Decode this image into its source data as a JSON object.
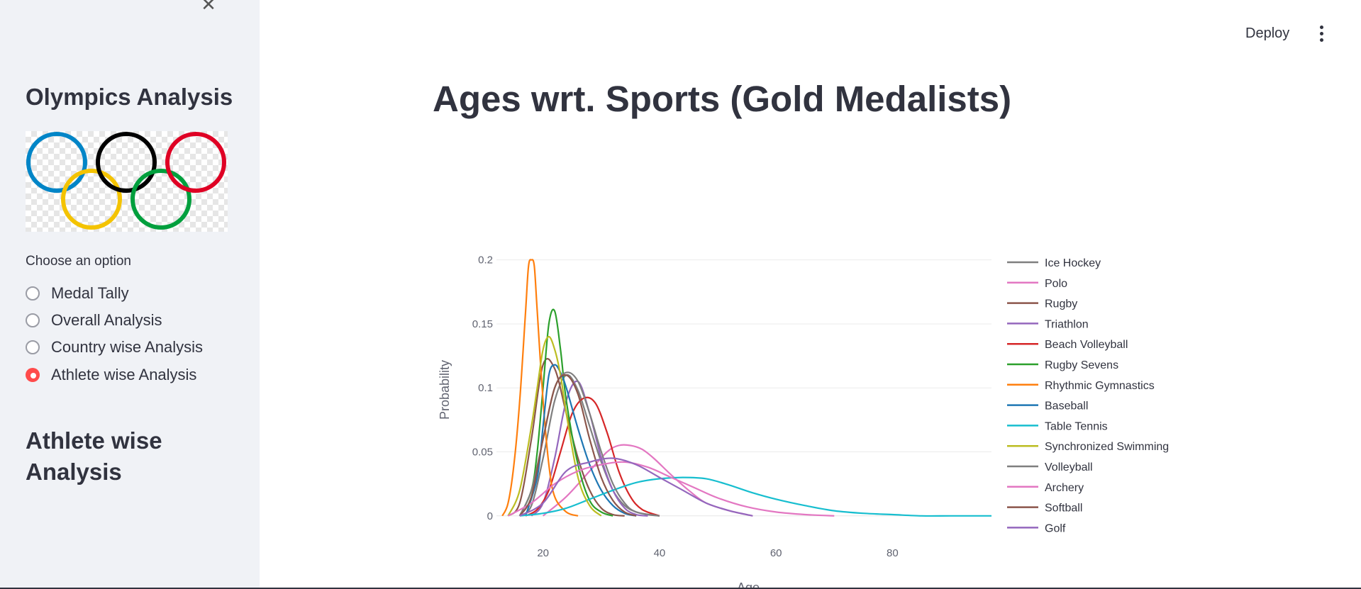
{
  "sidebar": {
    "close_icon": "close-icon",
    "app_title": "Olympics Analysis",
    "logo": {
      "name": "olympic-rings-logo",
      "ring_colors": [
        "#0085c7",
        "#000000",
        "#df0024",
        "#f4c300",
        "#009f3d"
      ]
    },
    "radio": {
      "label": "Choose an option",
      "options": [
        {
          "label": "Medal Tally",
          "selected": false
        },
        {
          "label": "Overall Analysis",
          "selected": false
        },
        {
          "label": "Country wise Analysis",
          "selected": false
        },
        {
          "label": "Athlete wise Analysis",
          "selected": true
        }
      ],
      "accent_color": "#ff4b4b"
    },
    "section_heading": "Athlete wise Analysis"
  },
  "header": {
    "deploy_label": "Deploy",
    "menu_icon": "vertical-ellipsis-icon"
  },
  "main": {
    "title": "Ages wrt. Sports (Gold Medalists)"
  },
  "chart_data": {
    "type": "line",
    "title": "",
    "xlabel": "Age",
    "ylabel": "Probability",
    "xlim": [
      12,
      97
    ],
    "ylim": [
      -0.004,
      0.212
    ],
    "xticks": [
      "20",
      "40",
      "60",
      "80"
    ],
    "yticks": [
      "0",
      "0.05",
      "0.1",
      "0.15",
      "0.2"
    ],
    "grid": true,
    "legend_position": "right",
    "series": [
      {
        "name": "Ice Hockey",
        "color": "#7f7f7f",
        "x": [
          16,
          18,
          20,
          22,
          24,
          26,
          28,
          30,
          32,
          34,
          36,
          38,
          40
        ],
        "y": [
          0,
          0.008,
          0.045,
          0.09,
          0.11,
          0.098,
          0.07,
          0.042,
          0.02,
          0.008,
          0.003,
          0.001,
          0
        ]
      },
      {
        "name": "Polo",
        "color": "#e377c2",
        "x": [
          20,
          24,
          28,
          31,
          33,
          35,
          37,
          39,
          42,
          45,
          48,
          52,
          56
        ],
        "y": [
          0,
          0.015,
          0.035,
          0.05,
          0.055,
          0.055,
          0.052,
          0.045,
          0.032,
          0.02,
          0.01,
          0.004,
          0
        ]
      },
      {
        "name": "Rugby",
        "color": "#8c564b",
        "x": [
          14,
          16,
          18,
          20,
          22,
          24,
          26,
          28,
          30,
          32,
          34
        ],
        "y": [
          0,
          0.01,
          0.06,
          0.118,
          0.115,
          0.08,
          0.045,
          0.02,
          0.006,
          0.001,
          0
        ]
      },
      {
        "name": "Triathlon",
        "color": "#9467bd",
        "x": [
          18,
          20,
          22,
          24,
          26,
          28,
          30,
          32,
          34,
          36,
          38
        ],
        "y": [
          0,
          0.01,
          0.045,
          0.09,
          0.105,
          0.08,
          0.045,
          0.02,
          0.006,
          0.001,
          0
        ]
      },
      {
        "name": "Beach Volleyball",
        "color": "#d62728",
        "x": [
          17,
          19,
          21,
          23,
          25,
          27,
          29,
          31,
          33,
          35,
          37,
          40
        ],
        "y": [
          0,
          0.005,
          0.02,
          0.05,
          0.08,
          0.092,
          0.088,
          0.065,
          0.035,
          0.015,
          0.005,
          0
        ]
      },
      {
        "name": "Rugby Sevens",
        "color": "#2ca02c",
        "x": [
          16,
          18,
          19,
          20,
          21,
          22,
          23,
          24,
          26,
          28,
          30,
          32
        ],
        "y": [
          0,
          0.02,
          0.05,
          0.1,
          0.15,
          0.16,
          0.13,
          0.09,
          0.04,
          0.012,
          0.003,
          0
        ]
      },
      {
        "name": "Rhythmic Gymnastics",
        "color": "#ff7f0e",
        "x": [
          13,
          14,
          15,
          16,
          17,
          17.5,
          18,
          18.5,
          19,
          20,
          21,
          22,
          24,
          26
        ],
        "y": [
          0,
          0.01,
          0.04,
          0.09,
          0.16,
          0.195,
          0.2,
          0.195,
          0.16,
          0.09,
          0.04,
          0.015,
          0.003,
          0
        ]
      },
      {
        "name": "Baseball",
        "color": "#1f77b4",
        "x": [
          17,
          19,
          20,
          21,
          22,
          23,
          24,
          26,
          28,
          30,
          32,
          34,
          36
        ],
        "y": [
          0,
          0.03,
          0.07,
          0.11,
          0.118,
          0.112,
          0.1,
          0.068,
          0.04,
          0.02,
          0.008,
          0.002,
          0
        ]
      },
      {
        "name": "Table Tennis",
        "color": "#17becf",
        "x": [
          16,
          20,
          24,
          28,
          32,
          36,
          40,
          44,
          48,
          52,
          56,
          60,
          65,
          70,
          75,
          80,
          85,
          90,
          97
        ],
        "y": [
          0,
          0.002,
          0.006,
          0.013,
          0.02,
          0.026,
          0.029,
          0.03,
          0.029,
          0.024,
          0.018,
          0.013,
          0.008,
          0.004,
          0.002,
          0.001,
          0,
          0,
          0
        ]
      },
      {
        "name": "Synchronized Swimming",
        "color": "#bcbd22",
        "x": [
          14,
          16,
          18,
          19,
          20,
          21,
          22,
          23,
          24,
          26,
          28,
          30
        ],
        "y": [
          0,
          0.02,
          0.07,
          0.1,
          0.13,
          0.14,
          0.13,
          0.11,
          0.08,
          0.03,
          0.008,
          0
        ]
      },
      {
        "name": "Volleyball",
        "color": "#7f7f7f",
        "x": [
          16,
          18,
          20,
          22,
          24,
          26,
          28,
          30,
          32,
          34,
          36,
          40
        ],
        "y": [
          0,
          0.02,
          0.06,
          0.1,
          0.112,
          0.105,
          0.08,
          0.05,
          0.025,
          0.01,
          0.003,
          0
        ]
      },
      {
        "name": "Archery",
        "color": "#e377c2",
        "x": [
          14,
          18,
          22,
          26,
          30,
          34,
          38,
          42,
          46,
          50,
          55,
          60,
          65,
          70
        ],
        "y": [
          0,
          0.01,
          0.025,
          0.035,
          0.04,
          0.042,
          0.038,
          0.03,
          0.022,
          0.014,
          0.007,
          0.003,
          0.001,
          0
        ]
      },
      {
        "name": "Softball",
        "color": "#8c564b",
        "x": [
          16,
          18,
          20,
          22,
          24,
          26,
          28,
          30,
          32,
          34,
          36
        ],
        "y": [
          0,
          0.015,
          0.06,
          0.1,
          0.11,
          0.095,
          0.06,
          0.03,
          0.012,
          0.003,
          0
        ]
      },
      {
        "name": "Golf",
        "color": "#9467bd",
        "x": [
          16,
          20,
          24,
          28,
          32,
          36,
          40,
          44,
          48,
          52,
          56
        ],
        "y": [
          0,
          0.01,
          0.035,
          0.042,
          0.045,
          0.04,
          0.03,
          0.02,
          0.01,
          0.004,
          0
        ]
      }
    ]
  }
}
